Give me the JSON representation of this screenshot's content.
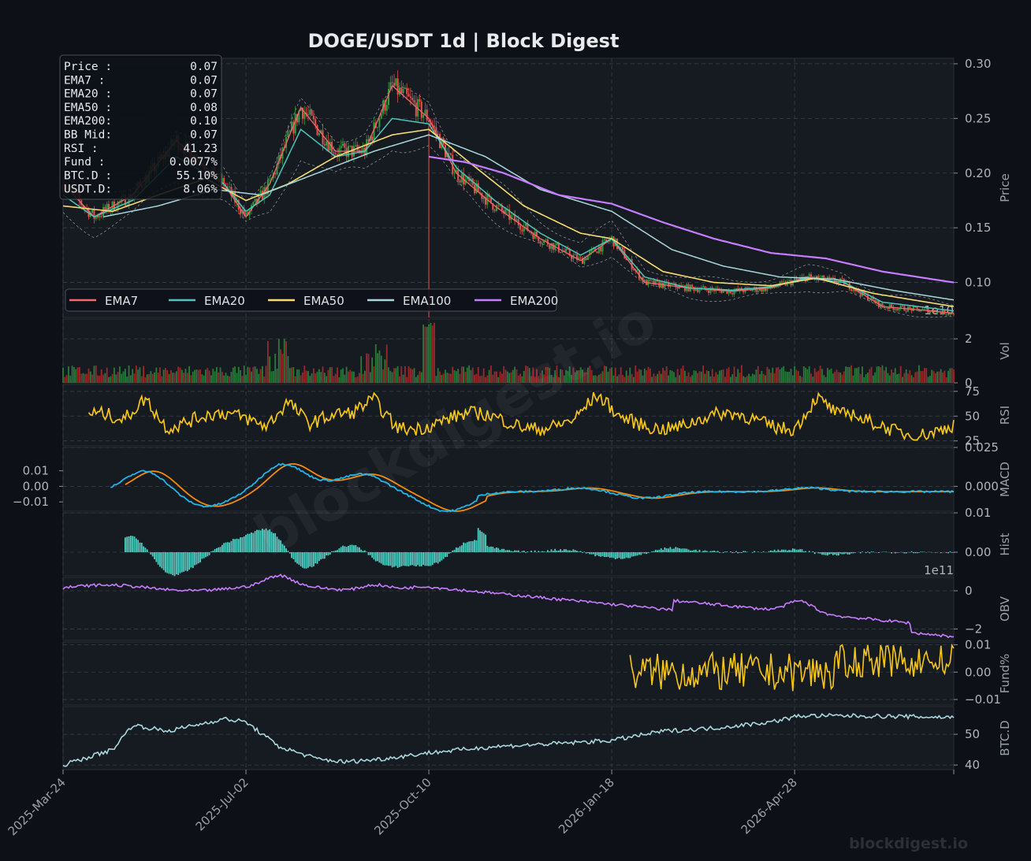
{
  "title": "DOGE/USDT  1d  |  Block Digest",
  "watermark": "blockdigest.io",
  "footer_brand": "blockdigest.io",
  "colors": {
    "background": "#0d1017",
    "panel": "#161a21",
    "grid": "#3a3f48",
    "up": "#2ea043",
    "down": "#e5534b",
    "ema7": "#f06b6b",
    "ema20": "#4fc4b8",
    "ema50": "#f7dc6f",
    "ema100": "#a8d8dc",
    "ema200": "#c77dff",
    "rsi": "#f5c518",
    "macd": "#1fb5e8",
    "signal": "#f58a0a",
    "hist": "#4fd1c5",
    "obv": "#c77dff",
    "fund": "#f5c518",
    "btcd": "#a8d8dc"
  },
  "info_box": [
    {
      "label": "Price :",
      "value": "0.07"
    },
    {
      "label": "EMA7  :",
      "value": "0.07"
    },
    {
      "label": "EMA20 :",
      "value": "0.07"
    },
    {
      "label": "EMA50 :",
      "value": "0.08"
    },
    {
      "label": "EMA200:",
      "value": "0.10"
    },
    {
      "label": "BB Mid:",
      "value": "0.07"
    },
    {
      "label": "RSI   :",
      "value": "41.23"
    },
    {
      "label": "Fund  :",
      "value": "0.0077%"
    },
    {
      "label": "BTC.D :",
      "value": "55.10%"
    },
    {
      "label": "USDT.D:",
      "value": "8.06%"
    }
  ],
  "legend": [
    "EMA7",
    "EMA20",
    "EMA50",
    "EMA100",
    "EMA200"
  ],
  "x_ticks": [
    "2025-Mar-24",
    "2025-Jul-02",
    "2025-Oct-10",
    "2026-Jan-18",
    "2026-Apr-28"
  ],
  "chart_data": {
    "type": "line",
    "x_range": [
      "2025-Mar-24",
      "2026-Jul-24"
    ],
    "panels": [
      {
        "name": "price",
        "ylabel": "Price",
        "ylim": [
          0.068,
          0.305
        ],
        "yticks": [
          "0.10",
          "0.15",
          "0.20",
          "0.25",
          "0.30"
        ],
        "offset_label": "1e10",
        "series": [
          {
            "name": "EMA7",
            "x": [
              "2025-Mar-24",
              "2025-Apr-10",
              "2025-May-01",
              "2025-May-25",
              "2025-Jun-20",
              "2025-Jul-02",
              "2025-Jul-15",
              "2025-Aug-01",
              "2025-Aug-20",
              "2025-Sep-05",
              "2025-Sep-20",
              "2025-Oct-10",
              "2025-Oct-25",
              "2025-Nov-15",
              "2025-Dec-10",
              "2026-Jan-01",
              "2026-Jan-18",
              "2026-Feb-05",
              "2026-Mar-01",
              "2026-Mar-25",
              "2026-Apr-15",
              "2026-May-05",
              "2026-May-25",
              "2026-Jun-15",
              "2026-Jul-24"
            ],
            "values": [
              0.19,
              0.16,
              0.18,
              0.23,
              0.19,
              0.16,
              0.19,
              0.26,
              0.22,
              0.22,
              0.28,
              0.25,
              0.2,
              0.17,
              0.14,
              0.12,
              0.14,
              0.1,
              0.095,
              0.092,
              0.095,
              0.105,
              0.1,
              0.078,
              0.072
            ]
          },
          {
            "name": "EMA20",
            "x": [
              "2025-Mar-24",
              "2025-Apr-10",
              "2025-May-01",
              "2025-May-25",
              "2025-Jun-20",
              "2025-Jul-02",
              "2025-Jul-15",
              "2025-Aug-01",
              "2025-Aug-20",
              "2025-Sep-05",
              "2025-Sep-20",
              "2025-Oct-10",
              "2025-Oct-25",
              "2025-Nov-15",
              "2025-Dec-10",
              "2026-Jan-01",
              "2026-Jan-18",
              "2026-Feb-05",
              "2026-Mar-01",
              "2026-Mar-25",
              "2026-Apr-15",
              "2026-May-05",
              "2026-May-25",
              "2026-Jun-15",
              "2026-Jul-24"
            ],
            "values": [
              0.18,
              0.16,
              0.175,
              0.215,
              0.19,
              0.165,
              0.18,
              0.24,
              0.215,
              0.22,
              0.25,
              0.245,
              0.205,
              0.175,
              0.145,
              0.125,
              0.14,
              0.105,
              0.095,
              0.093,
              0.096,
              0.104,
              0.1,
              0.082,
              0.074
            ]
          },
          {
            "name": "EMA50",
            "x": [
              "2025-Mar-24",
              "2025-Apr-20",
              "2025-May-15",
              "2025-Jun-10",
              "2025-Jul-02",
              "2025-Jul-25",
              "2025-Aug-20",
              "2025-Sep-20",
              "2025-Oct-10",
              "2025-Nov-01",
              "2025-Dec-01",
              "2026-Jan-01",
              "2026-Jan-18",
              "2026-Feb-15",
              "2026-Mar-15",
              "2026-Apr-15",
              "2026-May-10",
              "2026-Jun-10",
              "2026-Jul-24"
            ],
            "values": [
              0.17,
              0.165,
              0.18,
              0.195,
              0.175,
              0.19,
              0.215,
              0.235,
              0.24,
              0.21,
              0.17,
              0.145,
              0.14,
              0.11,
              0.1,
              0.097,
              0.104,
              0.09,
              0.078
            ]
          },
          {
            "name": "EMA100",
            "x": [
              "2025-Apr-15",
              "2025-May-15",
              "2025-Jun-15",
              "2025-Jul-10",
              "2025-Aug-10",
              "2025-Sep-10",
              "2025-Oct-10",
              "2025-Nov-10",
              "2025-Dec-10",
              "2026-Jan-18",
              "2026-Feb-20",
              "2026-Mar-20",
              "2026-Apr-20",
              "2026-May-20",
              "2026-Jun-20",
              "2026-Jul-24"
            ],
            "values": [
              0.16,
              0.17,
              0.185,
              0.18,
              0.2,
              0.22,
              0.235,
              0.215,
              0.185,
              0.165,
              0.13,
              0.115,
              0.105,
              0.103,
              0.093,
              0.084
            ]
          },
          {
            "name": "EMA200",
            "x": [
              "2025-Oct-10",
              "2025-Oct-30",
              "2025-Nov-20",
              "2025-Dec-20",
              "2026-Jan-18",
              "2026-Feb-15",
              "2026-Mar-15",
              "2026-Apr-15",
              "2026-May-15",
              "2026-Jun-15",
              "2026-Jul-24"
            ],
            "values": [
              0.215,
              0.21,
              0.2,
              0.18,
              0.172,
              0.155,
              0.14,
              0.127,
              0.122,
              0.11,
              0.1
            ]
          }
        ]
      },
      {
        "name": "volume",
        "ylabel": "Vol",
        "ylim": [
          0,
          2.9
        ],
        "yticks": [
          "0",
          "2"
        ]
      },
      {
        "name": "rsi",
        "ylabel": "RSI",
        "ylim": [
          20,
          82
        ],
        "yticks": [
          "25",
          "50",
          "75"
        ]
      },
      {
        "name": "macd",
        "ylabel": "MACD",
        "ylim": [
          -0.016,
          0.025
        ],
        "yticks_left": [
          "−0.01",
          "0.00",
          "0.01"
        ],
        "yticks_right": [
          "0.000",
          "0.025"
        ]
      },
      {
        "name": "hist",
        "ylabel": "Hist",
        "ylim": [
          -0.006,
          0.01
        ],
        "yticks": [
          "0.00",
          "0.01"
        ],
        "offset_label": "1e11"
      },
      {
        "name": "obv",
        "ylabel": "OBV",
        "ylim": [
          -2.6,
          0.7
        ],
        "yticks": [
          "−2",
          "0"
        ]
      },
      {
        "name": "fund",
        "ylabel": "Fund%",
        "ylim": [
          -0.012,
          0.011
        ],
        "yticks": [
          "−0.01",
          "0.00",
          "0.01"
        ]
      },
      {
        "name": "btcd",
        "ylabel": "BTC.D",
        "ylim": [
          38.5,
          59
        ],
        "yticks": [
          "40",
          "50"
        ]
      }
    ]
  }
}
